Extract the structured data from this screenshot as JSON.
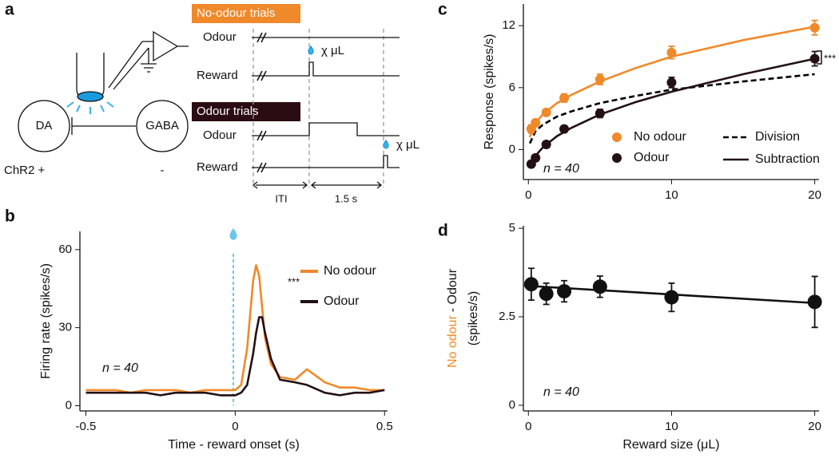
{
  "diagram": {
    "panel": "a",
    "da": "DA",
    "gaba": "GABA",
    "chr2_da": "ChR2 +",
    "chr2_gaba": "-",
    "no_odour_trials": {
      "title": "No-odour trials",
      "odour": "Odour",
      "reward": "Reward",
      "reward_size": "χ μL"
    },
    "odour_trials": {
      "title": "Odour trials",
      "odour": "Odour",
      "reward": "Reward",
      "reward_size": "χ μL"
    },
    "iti": "ITI",
    "delay": "1.5 s"
  },
  "chart_data": [
    {
      "type": "line",
      "panel": "b",
      "xlabel": "Time  - reward onset (s)",
      "ylabel": "Firing rate (spikes/s)",
      "x": [
        -0.5,
        -0.45,
        -0.4,
        -0.35,
        -0.3,
        -0.25,
        -0.2,
        -0.15,
        -0.1,
        -0.05,
        0,
        0.02,
        0.04,
        0.06,
        0.07,
        0.08,
        0.09,
        0.1,
        0.12,
        0.15,
        0.2,
        0.24,
        0.3,
        0.35,
        0.4,
        0.45,
        0.5
      ],
      "series": [
        {
          "name": "No odour",
          "color": "#f0892a",
          "values": [
            6,
            6,
            6,
            5,
            6,
            6,
            6,
            5,
            6,
            6,
            6,
            8,
            22,
            48,
            54,
            50,
            38,
            26,
            16,
            11,
            10,
            14,
            9,
            7,
            7,
            6,
            6
          ]
        },
        {
          "name": "Odour",
          "color": "#231015",
          "values": [
            5,
            5,
            5,
            5,
            5,
            4,
            5,
            5,
            5,
            4,
            4,
            5,
            8,
            20,
            28,
            34,
            34,
            28,
            18,
            10,
            9,
            8,
            5,
            4,
            5,
            5,
            6
          ]
        }
      ],
      "xlim": [
        -0.52,
        0.51
      ],
      "ylim": [
        -2,
        67
      ],
      "xticks": [
        -0.5,
        0,
        0.5
      ],
      "yticks": [
        0,
        30,
        60
      ],
      "legend": "upper right",
      "significance": "***",
      "n_label": "n = 40"
    },
    {
      "type": "scatter",
      "panel": "c",
      "ylabel": "Response (spikes/s)",
      "series": [
        {
          "name": "No odour",
          "color": "#f0892a",
          "x": [
            0.2,
            0.5,
            1.25,
            2.5,
            5,
            10,
            20
          ],
          "values": [
            2,
            2.6,
            3.6,
            5,
            6.8,
            9.4,
            11.8
          ],
          "errors": [
            0.4,
            0.3,
            0.3,
            0.4,
            0.5,
            0.6,
            0.7
          ]
        },
        {
          "name": "Odour",
          "color": "#231015",
          "x": [
            0.2,
            0.5,
            1.25,
            2.5,
            5,
            10,
            20
          ],
          "values": [
            -1.4,
            -0.8,
            0.5,
            2,
            3.5,
            6.5,
            8.8
          ],
          "errors": [
            0.3,
            0.3,
            0.3,
            0.3,
            0.4,
            0.5,
            0.7
          ]
        }
      ],
      "fits": [
        {
          "color": "#f0892a",
          "x": [
            0.1,
            0.5,
            1,
            2,
            3,
            5,
            7.5,
            10,
            15,
            20
          ],
          "values": [
            1.2,
            2.6,
            3.4,
            4.5,
            5.3,
            6.6,
            7.9,
            9,
            10.6,
            11.9
          ]
        },
        {
          "name": "Division",
          "color": "#000000",
          "dash": true,
          "x": [
            0.1,
            0.5,
            1,
            2,
            3,
            5,
            7.5,
            10,
            15,
            20
          ],
          "values": [
            0.6,
            1.8,
            2.4,
            3.2,
            3.7,
            4.5,
            5.2,
            5.8,
            6.6,
            7.3
          ]
        },
        {
          "name": "Subtraction",
          "color": "#231015",
          "x": [
            0.1,
            0.5,
            1,
            2,
            3,
            5,
            7.5,
            10,
            15,
            20
          ],
          "values": [
            -1.8,
            -0.6,
            0.2,
            1.3,
            2.1,
            3.4,
            4.6,
            5.6,
            7.3,
            8.8
          ]
        }
      ],
      "xlim": [
        -0.35,
        20.3
      ],
      "ylim": [
        -2.9,
        14.1
      ],
      "xticks": [
        0,
        10,
        20
      ],
      "yticks": [
        0,
        6,
        12
      ],
      "legend": "lower right",
      "significance": "***",
      "n_label": "n = 40"
    },
    {
      "type": "scatter",
      "panel": "d",
      "xlabel": "Reward size (μL)",
      "ylabel_parts": [
        {
          "text": "No odour",
          "color": "#f0892a"
        },
        {
          "text": "- Odour",
          "color": "#111111"
        }
      ],
      "ylabel_units": "(spikes/s)",
      "series": [
        {
          "color": "#111111",
          "x": [
            0.2,
            1.25,
            2.5,
            5,
            10,
            20
          ],
          "values": [
            3.42,
            3.15,
            3.22,
            3.35,
            3.05,
            2.92
          ],
          "errors": [
            0.45,
            0.3,
            0.3,
            0.3,
            0.4,
            0.72
          ]
        }
      ],
      "fits": [
        {
          "color": "#111111",
          "x": [
            -0.3,
            20.3
          ],
          "values": [
            3.38,
            2.88
          ]
        }
      ],
      "xlim": [
        -0.35,
        20.3
      ],
      "ylim": [
        -0.16,
        5.07
      ],
      "xticks": [
        0,
        10,
        20
      ],
      "yticks": [
        0,
        2.5,
        5
      ],
      "n_label": "n = 40"
    }
  ]
}
